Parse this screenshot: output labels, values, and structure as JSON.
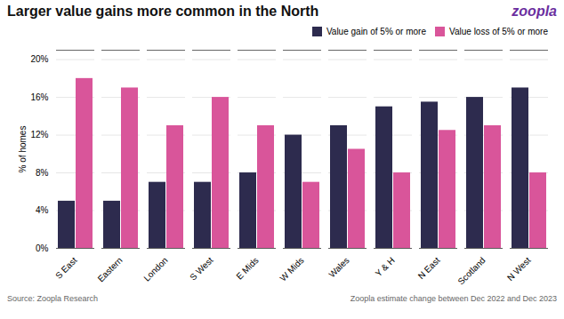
{
  "chart_data": {
    "type": "bar",
    "title": "Larger value gains more common in the North",
    "ylabel": "% of homes",
    "categories": [
      "S East",
      "Eastern",
      "London",
      "S West",
      "E Mids",
      "W Mids",
      "Wales",
      "Y & H",
      "N East",
      "Scotland",
      "N West"
    ],
    "series": [
      {
        "name": "Value gain of 5% or more",
        "color": "#2d2b4e",
        "values": [
          5,
          5,
          7,
          7,
          8,
          12,
          13,
          15,
          15.5,
          16,
          17
        ]
      },
      {
        "name": "Value loss of 5% or more",
        "color": "#d9559a",
        "values": [
          18,
          17,
          13,
          16,
          13,
          7,
          10.5,
          8,
          12.5,
          13,
          8
        ]
      }
    ],
    "ylim": [
      0,
      21
    ],
    "yticks": [
      {
        "value": 0,
        "label": "0%"
      },
      {
        "value": 4,
        "label": "4%"
      },
      {
        "value": 8,
        "label": "8%"
      },
      {
        "value": 12,
        "label": "12%"
      },
      {
        "value": 16,
        "label": "16%"
      },
      {
        "value": 20,
        "label": "20%"
      }
    ],
    "grid": true,
    "legend": "upper right",
    "annotations": [
      {
        "text": "zoopla",
        "color": "#6b2fa0"
      },
      {
        "text": "Source: Zoopla Research"
      },
      {
        "text": "Zoopla estimate change between Dec 2022 and Dec 2023"
      }
    ]
  }
}
